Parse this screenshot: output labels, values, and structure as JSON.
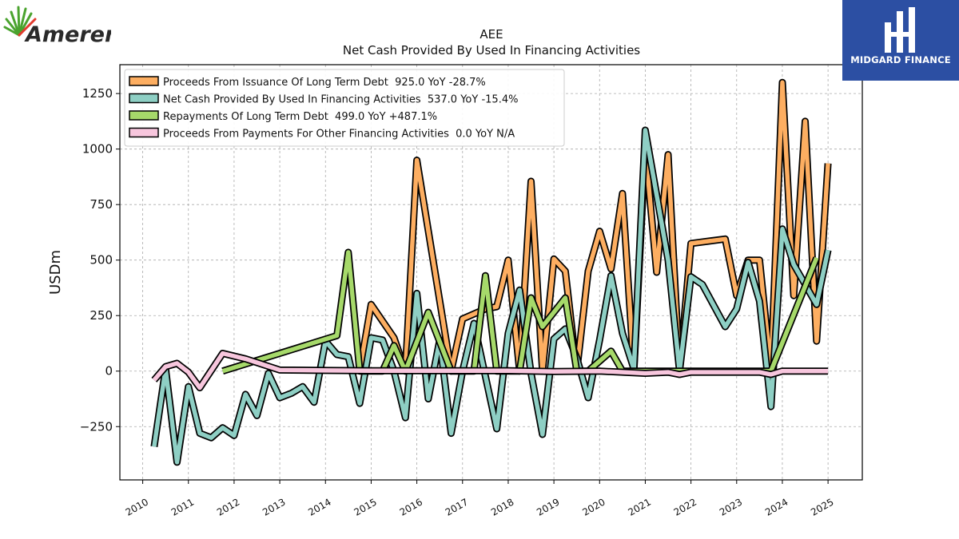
{
  "branding": {
    "left_logo_text": "Ameren",
    "right_logo_text": "MIDGARD FINANCE"
  },
  "chart_data": {
    "type": "line",
    "title": "AEE",
    "subtitle": "Net Cash Provided By Used In Financing Activities",
    "xlabel": "",
    "ylabel": "USDm",
    "xlim": [
      2009.5,
      2025.75
    ],
    "ylim": [
      -490,
      1380
    ],
    "yticks": [
      -250,
      0,
      250,
      500,
      750,
      1000,
      1250
    ],
    "yticklabels": [
      "−250",
      "0",
      "250",
      "500",
      "750",
      "1000",
      "1250"
    ],
    "xticks": [
      2010,
      2011,
      2012,
      2013,
      2014,
      2015,
      2016,
      2017,
      2018,
      2019,
      2020,
      2021,
      2022,
      2023,
      2024,
      2025
    ],
    "xticklabels": [
      "2010",
      "2011",
      "2012",
      "2013",
      "2014",
      "2015",
      "2016",
      "2017",
      "2018",
      "2019",
      "2020",
      "2021",
      "2022",
      "2023",
      "2024",
      "2025"
    ],
    "grid": true,
    "legend_position": "top-left",
    "series": [
      {
        "name": "Proceeds From Issuance Of Long Term Debt",
        "legend_label": "Proceeds From Issuance Of Long Term Debt  925.0 YoY -28.7%",
        "color": "#fdae61",
        "points": [
          [
            2014.75,
            0
          ],
          [
            2015.0,
            300
          ],
          [
            2015.5,
            150
          ],
          [
            2015.75,
            0
          ],
          [
            2016.0,
            950
          ],
          [
            2016.75,
            0
          ],
          [
            2017.0,
            235
          ],
          [
            2017.5,
            280
          ],
          [
            2017.75,
            290
          ],
          [
            2018.0,
            500
          ],
          [
            2018.25,
            0
          ],
          [
            2018.5,
            855
          ],
          [
            2018.75,
            0
          ],
          [
            2019.0,
            505
          ],
          [
            2019.25,
            450
          ],
          [
            2019.5,
            0
          ],
          [
            2019.75,
            450
          ],
          [
            2020.0,
            630
          ],
          [
            2020.25,
            460
          ],
          [
            2020.5,
            800
          ],
          [
            2020.75,
            0
          ],
          [
            2021.0,
            1005
          ],
          [
            2021.25,
            445
          ],
          [
            2021.5,
            975
          ],
          [
            2021.75,
            0
          ],
          [
            2022.0,
            575
          ],
          [
            2022.75,
            595
          ],
          [
            2023.0,
            340
          ],
          [
            2023.25,
            500
          ],
          [
            2023.5,
            500
          ],
          [
            2023.75,
            0
          ],
          [
            2024.0,
            1300
          ],
          [
            2024.25,
            340
          ],
          [
            2024.5,
            1125
          ],
          [
            2024.75,
            135
          ],
          [
            2025.0,
            935
          ]
        ]
      },
      {
        "name": "Net Cash Provided By Used In Financing Activities",
        "legend_label": "Net Cash Provided By Used In Financing Activities  537.0 YoY -15.4%",
        "color": "#8ecfc4",
        "points": [
          [
            2010.25,
            -340
          ],
          [
            2010.5,
            10
          ],
          [
            2010.75,
            -410
          ],
          [
            2011.0,
            -70
          ],
          [
            2011.25,
            -280
          ],
          [
            2011.5,
            -300
          ],
          [
            2011.75,
            -255
          ],
          [
            2012.0,
            -290
          ],
          [
            2012.25,
            -105
          ],
          [
            2012.5,
            -200
          ],
          [
            2012.75,
            -10
          ],
          [
            2013.0,
            -120
          ],
          [
            2013.25,
            -100
          ],
          [
            2013.5,
            -70
          ],
          [
            2013.75,
            -140
          ],
          [
            2014.0,
            135
          ],
          [
            2014.25,
            75
          ],
          [
            2014.5,
            65
          ],
          [
            2014.75,
            -145
          ],
          [
            2015.0,
            150
          ],
          [
            2015.25,
            140
          ],
          [
            2015.5,
            0
          ],
          [
            2015.75,
            -210
          ],
          [
            2016.0,
            350
          ],
          [
            2016.25,
            -125
          ],
          [
            2016.5,
            140
          ],
          [
            2016.75,
            -280
          ],
          [
            2017.0,
            0
          ],
          [
            2017.25,
            215
          ],
          [
            2017.75,
            -260
          ],
          [
            2018.0,
            170
          ],
          [
            2018.25,
            365
          ],
          [
            2018.5,
            -10
          ],
          [
            2018.75,
            -285
          ],
          [
            2019.0,
            145
          ],
          [
            2019.25,
            190
          ],
          [
            2019.5,
            60
          ],
          [
            2019.75,
            -120
          ],
          [
            2020.0,
            140
          ],
          [
            2020.25,
            430
          ],
          [
            2020.5,
            170
          ],
          [
            2020.75,
            10
          ],
          [
            2021.0,
            1085
          ],
          [
            2021.5,
            500
          ],
          [
            2021.75,
            0
          ],
          [
            2022.0,
            425
          ],
          [
            2022.25,
            390
          ],
          [
            2022.75,
            200
          ],
          [
            2023.0,
            280
          ],
          [
            2023.25,
            490
          ],
          [
            2023.5,
            315
          ],
          [
            2023.75,
            -160
          ],
          [
            2024.0,
            640
          ],
          [
            2024.25,
            480
          ],
          [
            2024.75,
            300
          ],
          [
            2025.0,
            545
          ]
        ]
      },
      {
        "name": "Repayments Of Long Term Debt",
        "legend_label": "Repayments Of Long Term Debt  499.0 YoY +487.1%",
        "color": "#a6d96a",
        "points": [
          [
            2011.75,
            0
          ],
          [
            2014.25,
            160
          ],
          [
            2014.5,
            535
          ],
          [
            2014.75,
            0
          ],
          [
            2015.25,
            0
          ],
          [
            2015.5,
            115
          ],
          [
            2015.75,
            0
          ],
          [
            2016.25,
            265
          ],
          [
            2016.75,
            0
          ],
          [
            2017.25,
            0
          ],
          [
            2017.5,
            430
          ],
          [
            2017.75,
            0
          ],
          [
            2018.25,
            0
          ],
          [
            2018.5,
            330
          ],
          [
            2018.75,
            200
          ],
          [
            2019.25,
            330
          ],
          [
            2019.5,
            0
          ],
          [
            2019.75,
            0
          ],
          [
            2020.25,
            90
          ],
          [
            2020.5,
            0
          ],
          [
            2023.75,
            0
          ],
          [
            2024.75,
            510
          ]
        ]
      },
      {
        "name": "Proceeds From Payments For Other Financing Activities",
        "legend_label": "Proceeds From Payments For Other Financing Activities  0.0 YoY N/A",
        "color": "#f7c6dd",
        "points": [
          [
            2010.25,
            -40
          ],
          [
            2010.5,
            20
          ],
          [
            2010.75,
            35
          ],
          [
            2011.0,
            -5
          ],
          [
            2011.25,
            -75
          ],
          [
            2011.75,
            80
          ],
          [
            2012.25,
            55
          ],
          [
            2013.0,
            5
          ],
          [
            2014.0,
            3
          ],
          [
            2015.0,
            2
          ],
          [
            2016.0,
            2
          ],
          [
            2017.0,
            2
          ],
          [
            2018.0,
            2
          ],
          [
            2019.0,
            -2
          ],
          [
            2020.0,
            0
          ],
          [
            2021.0,
            -10
          ],
          [
            2021.5,
            -5
          ],
          [
            2021.75,
            -15
          ],
          [
            2022.0,
            -5
          ],
          [
            2023.0,
            -5
          ],
          [
            2023.5,
            -5
          ],
          [
            2023.75,
            -15
          ],
          [
            2024.0,
            0
          ],
          [
            2025.0,
            0
          ]
        ]
      }
    ]
  }
}
